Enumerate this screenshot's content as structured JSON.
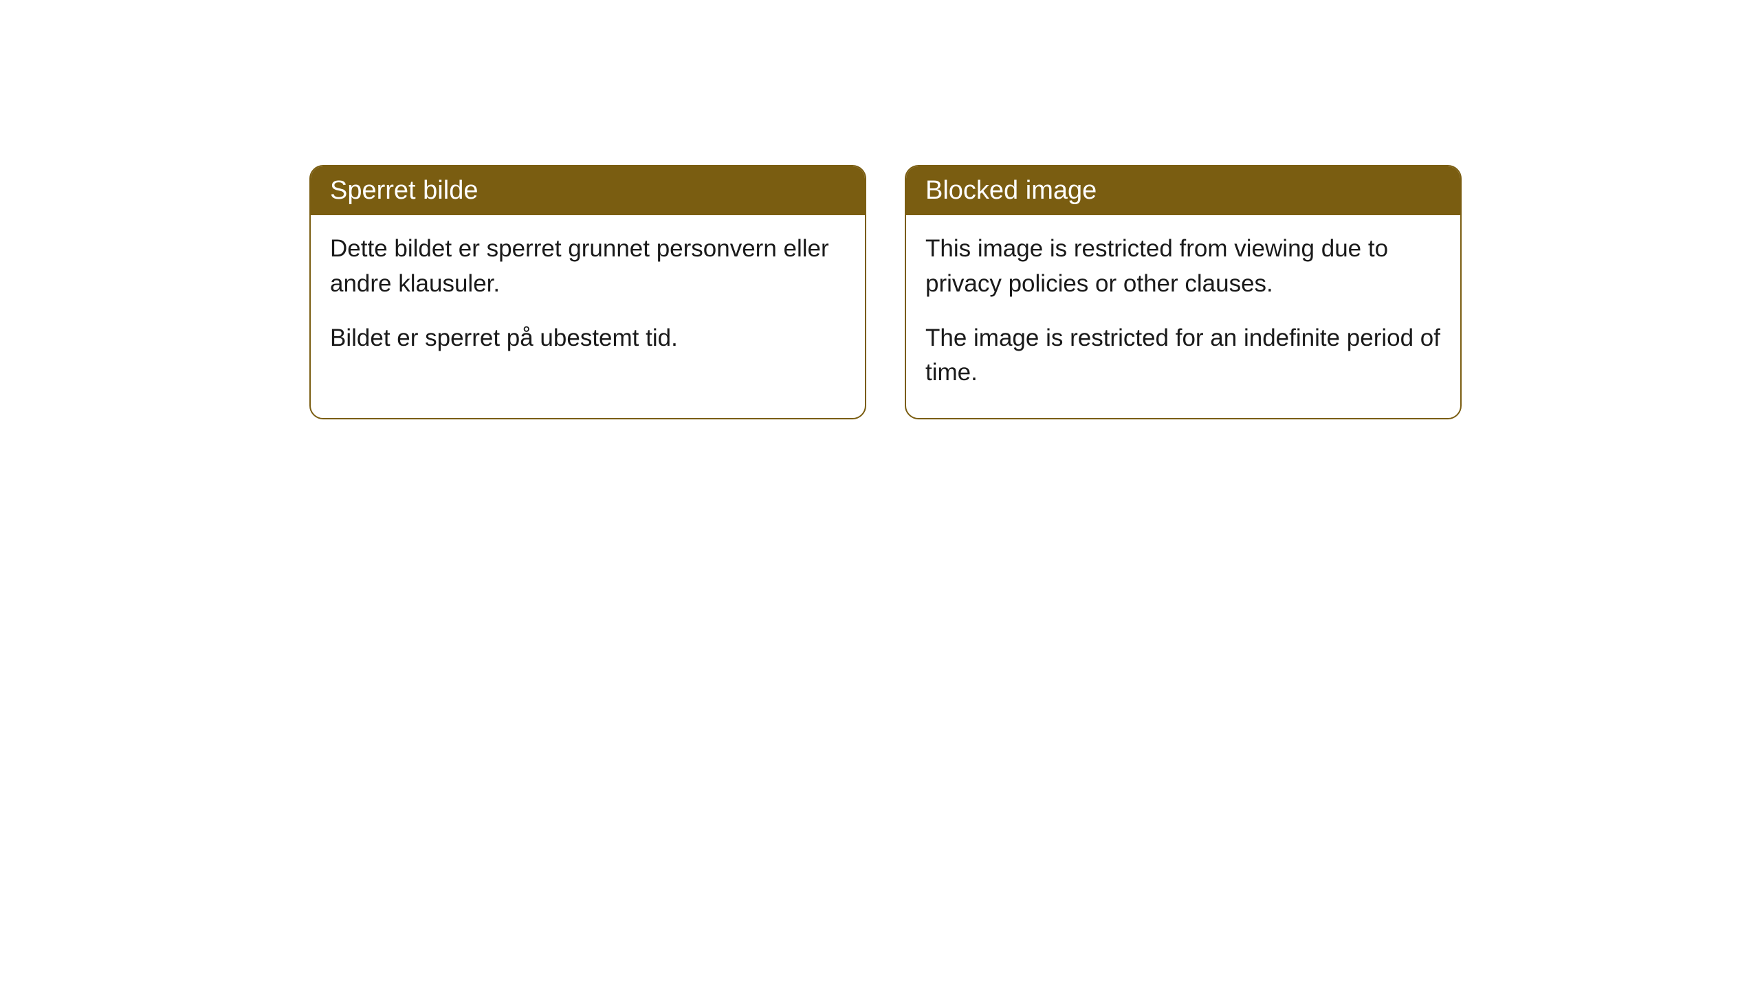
{
  "cards": [
    {
      "title": "Sperret bilde",
      "paragraph1": "Dette bildet er sperret grunnet personvern eller andre klausuler.",
      "paragraph2": "Bildet er sperret på ubestemt tid."
    },
    {
      "title": "Blocked image",
      "paragraph1": "This image is restricted from viewing due to privacy policies or other clauses.",
      "paragraph2": "The image is restricted for an indefinite period of time."
    }
  ],
  "styling": {
    "header_background": "#7a5d11",
    "header_text_color": "#ffffff",
    "border_color": "#7a5d11",
    "body_background": "#ffffff",
    "body_text_color": "#1a1a1a",
    "border_radius": 20,
    "title_fontsize": 38,
    "body_fontsize": 35
  }
}
